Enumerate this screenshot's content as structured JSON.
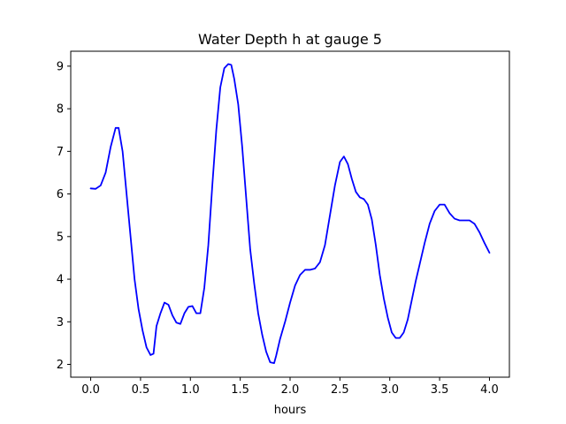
{
  "chart_data": {
    "type": "line",
    "title": "Water Depth h at gauge 5",
    "xlabel": "hours",
    "ylabel": "",
    "xlim": [
      -0.2,
      4.2
    ],
    "ylim": [
      1.7,
      9.35
    ],
    "xticks": [
      0.0,
      0.5,
      1.0,
      1.5,
      2.0,
      2.5,
      3.0,
      3.5,
      4.0
    ],
    "xtick_labels": [
      "0.0",
      "0.5",
      "1.0",
      "1.5",
      "2.0",
      "2.5",
      "3.0",
      "3.5",
      "4.0"
    ],
    "yticks": [
      2,
      3,
      4,
      5,
      6,
      7,
      8,
      9
    ],
    "ytick_labels": [
      "2",
      "3",
      "4",
      "5",
      "6",
      "7",
      "8",
      "9"
    ],
    "grid": false,
    "legend": "none",
    "series": [
      {
        "color": "#0000ff",
        "x": [
          0.0,
          0.05,
          0.1,
          0.15,
          0.2,
          0.25,
          0.28,
          0.32,
          0.36,
          0.4,
          0.44,
          0.48,
          0.52,
          0.56,
          0.6,
          0.63,
          0.66,
          0.7,
          0.74,
          0.78,
          0.82,
          0.86,
          0.9,
          0.94,
          0.98,
          1.02,
          1.06,
          1.1,
          1.14,
          1.18,
          1.22,
          1.26,
          1.3,
          1.34,
          1.38,
          1.41,
          1.44,
          1.48,
          1.52,
          1.56,
          1.6,
          1.64,
          1.68,
          1.72,
          1.76,
          1.8,
          1.84,
          1.86,
          1.9,
          1.95,
          2.0,
          2.05,
          2.1,
          2.15,
          2.2,
          2.25,
          2.3,
          2.35,
          2.4,
          2.45,
          2.5,
          2.54,
          2.58,
          2.62,
          2.66,
          2.7,
          2.74,
          2.78,
          2.82,
          2.86,
          2.9,
          2.94,
          2.98,
          3.02,
          3.06,
          3.1,
          3.14,
          3.18,
          3.22,
          3.26,
          3.3,
          3.35,
          3.4,
          3.45,
          3.5,
          3.55,
          3.6,
          3.65,
          3.7,
          3.75,
          3.8,
          3.85,
          3.9,
          3.95,
          4.0
        ],
        "y": [
          6.13,
          6.12,
          6.2,
          6.5,
          7.1,
          7.55,
          7.55,
          7.0,
          6.0,
          5.0,
          4.0,
          3.3,
          2.8,
          2.4,
          2.22,
          2.25,
          2.9,
          3.2,
          3.45,
          3.4,
          3.15,
          2.98,
          2.95,
          3.2,
          3.35,
          3.37,
          3.2,
          3.2,
          3.8,
          4.8,
          6.2,
          7.5,
          8.5,
          8.95,
          9.05,
          9.03,
          8.7,
          8.1,
          7.1,
          5.9,
          4.7,
          3.9,
          3.2,
          2.7,
          2.3,
          2.05,
          2.03,
          2.2,
          2.6,
          3.0,
          3.45,
          3.85,
          4.1,
          4.22,
          4.22,
          4.25,
          4.4,
          4.8,
          5.5,
          6.2,
          6.75,
          6.88,
          6.7,
          6.35,
          6.05,
          5.92,
          5.88,
          5.75,
          5.4,
          4.8,
          4.1,
          3.55,
          3.1,
          2.75,
          2.62,
          2.62,
          2.75,
          3.05,
          3.5,
          3.95,
          4.35,
          4.85,
          5.3,
          5.6,
          5.75,
          5.75,
          5.55,
          5.42,
          5.38,
          5.38,
          5.38,
          5.3,
          5.1,
          4.85,
          4.62
        ]
      }
    ]
  }
}
